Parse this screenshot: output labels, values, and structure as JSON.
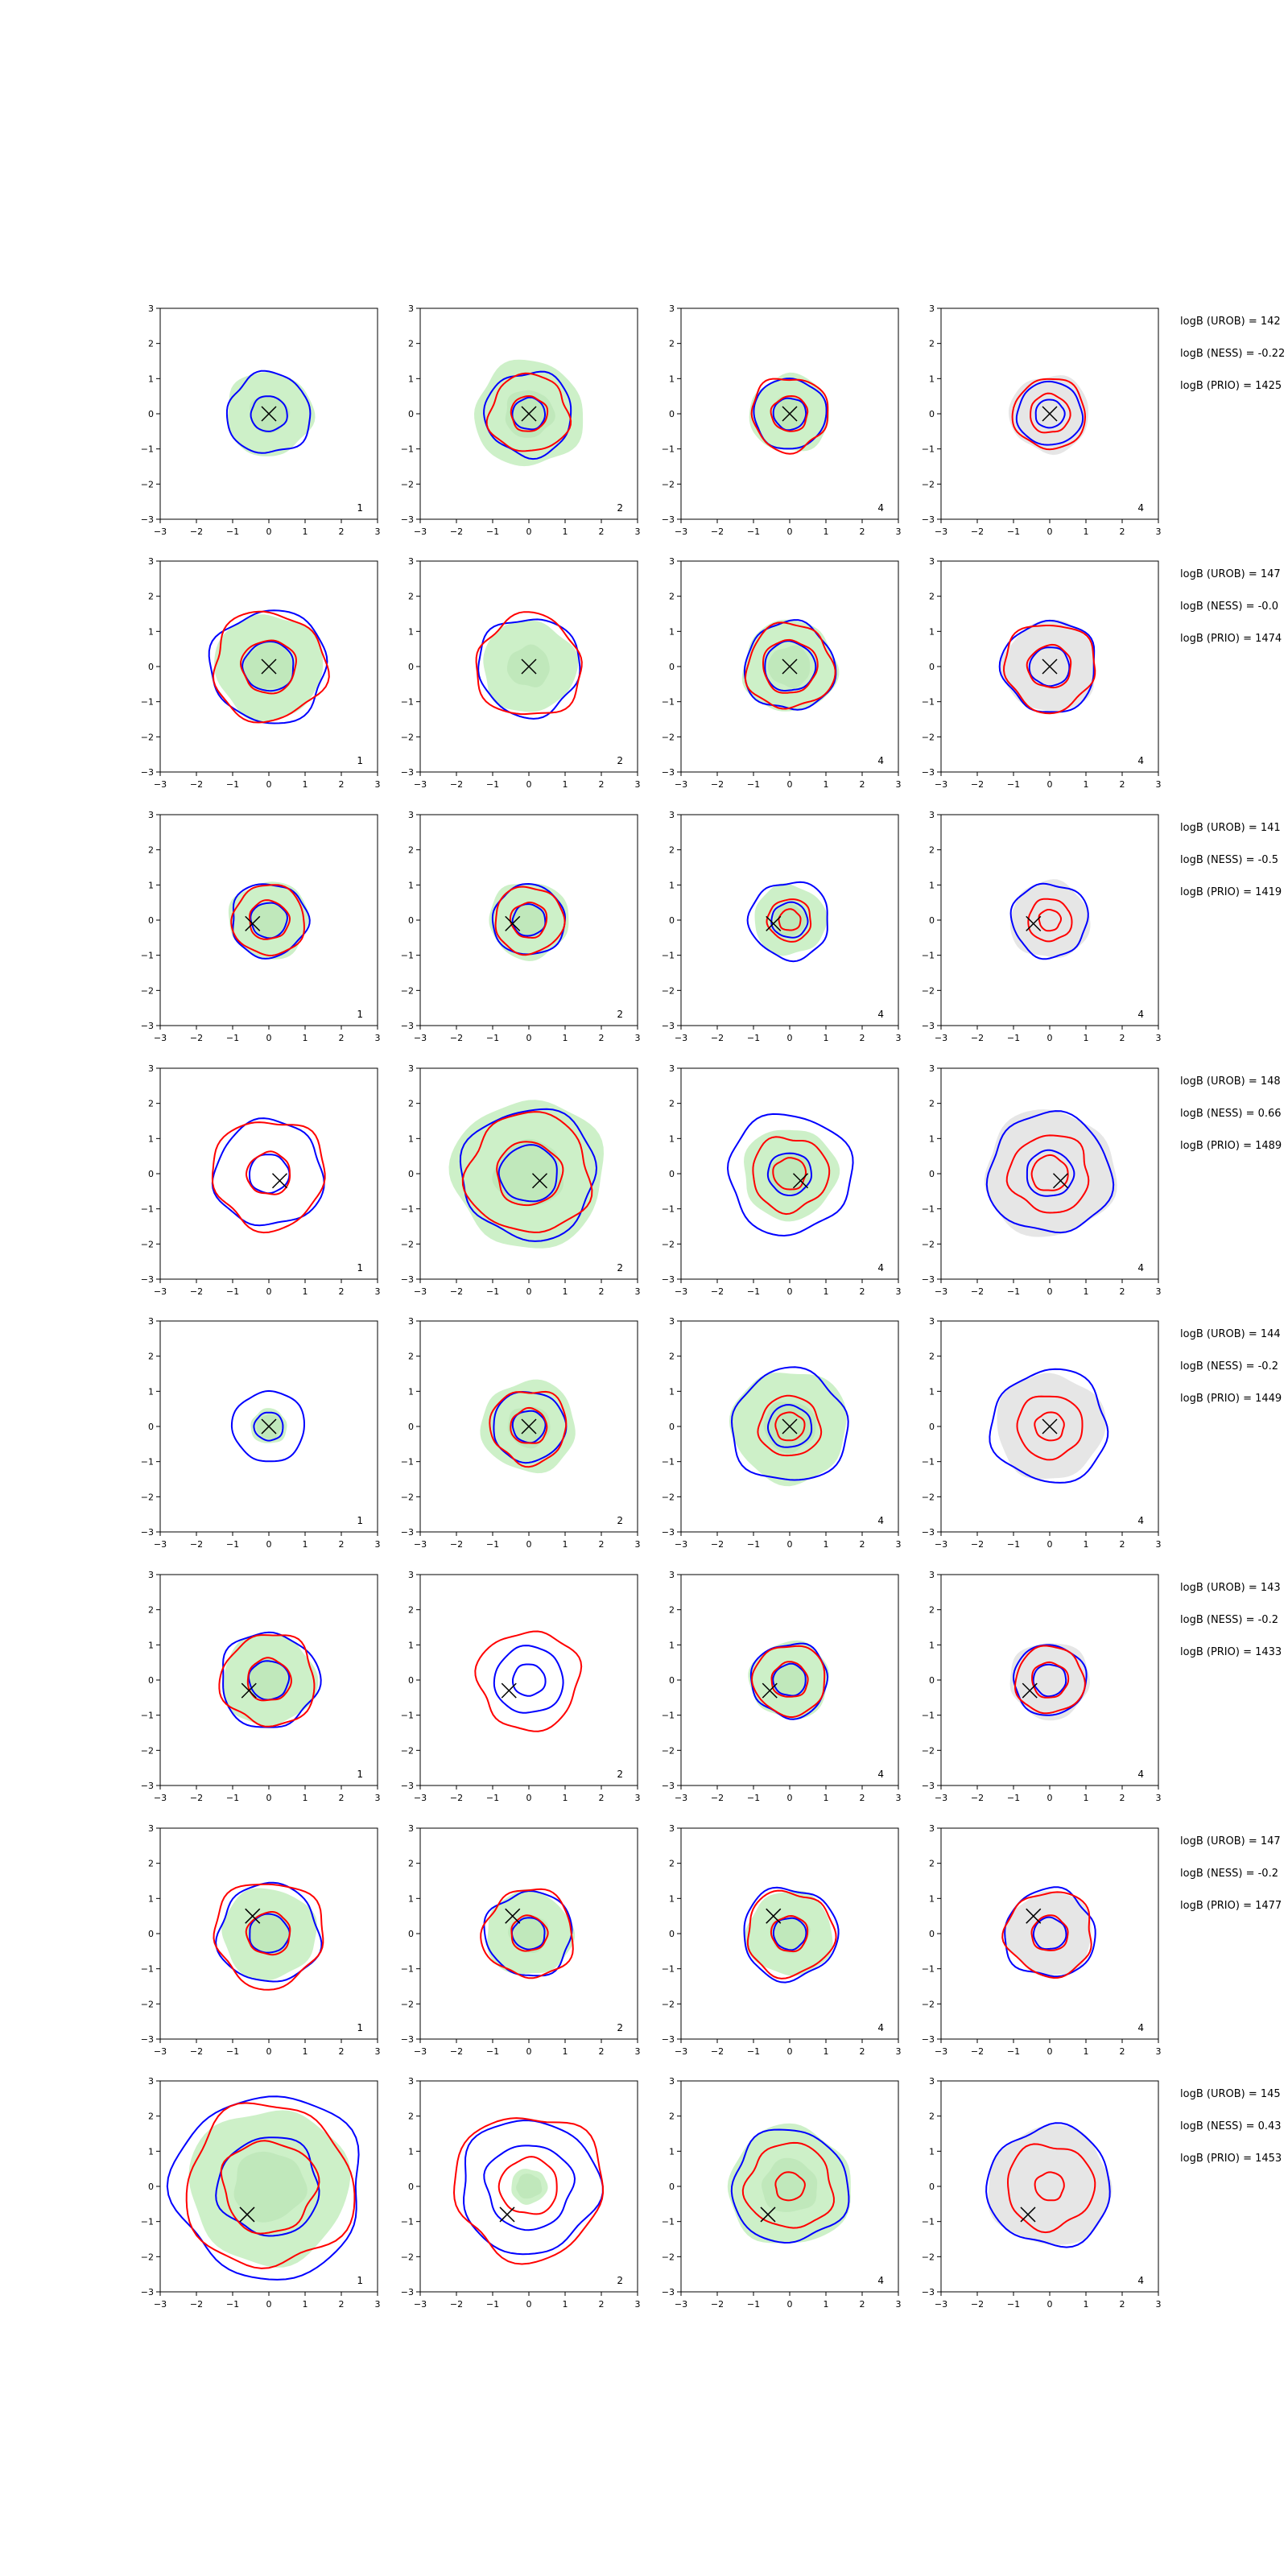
{
  "chart_data": {
    "type": "contour-grid",
    "rows": 8,
    "cols": 4,
    "xlim": [
      -3,
      3
    ],
    "ylim": [
      -3,
      3
    ],
    "xticks": [
      -3,
      -2,
      -1,
      0,
      1,
      2,
      3
    ],
    "yticks": [
      -3,
      -2,
      -1,
      0,
      1,
      2,
      3
    ],
    "column_labels": [
      "1",
      "2",
      "4",
      "4"
    ],
    "colors": {
      "blue_contour": "#0000ff",
      "red_contour": "#ff0000",
      "green_fill": "#cdf0c8",
      "green_fill_dark": "#b8e3b3",
      "gray_fill": "#e6e6e6",
      "marker": "#000000"
    },
    "row_annotations": [
      {
        "urob": "logB (UROB) = 142",
        "ness": "logB (NESS) = -0.22",
        "prio": "logB (PRIO) = 1425"
      },
      {
        "urob": "logB (UROB) = 147",
        "ness": "logB (NESS) = -0.0",
        "prio": "logB (PRIO) = 1474"
      },
      {
        "urob": "logB (UROB) = 141",
        "ness": "logB (NESS) = -0.5",
        "prio": "logB (PRIO) = 1419"
      },
      {
        "urob": "logB (UROB) = 148",
        "ness": "logB (NESS) = 0.66",
        "prio": "logB (PRIO) = 1489"
      },
      {
        "urob": "logB (UROB) = 144",
        "ness": "logB (NESS) = -0.2",
        "prio": "logB (PRIO) = 1449"
      },
      {
        "urob": "logB (UROB) = 143",
        "ness": "logB (NESS) = -0.2",
        "prio": "logB (PRIO) = 1433"
      },
      {
        "urob": "logB (UROB) = 147",
        "ness": "logB (NESS) = -0.2",
        "prio": "logB (PRIO) = 1477"
      },
      {
        "urob": "logB (UROB) = 145",
        "ness": "logB (NESS) = 0.43",
        "prio": "logB (PRIO) = 1453"
      }
    ],
    "panels": [
      [
        {
          "marker": [
            0,
            0
          ],
          "fill": {
            "type": "green",
            "r": 1.2
          },
          "blue": [
            0.5,
            1.15
          ],
          "red": []
        },
        {
          "marker": [
            0,
            0
          ],
          "fill": {
            "type": "green",
            "r": 1.5
          },
          "blue": [
            0.45,
            1.2
          ],
          "red": [
            0.5,
            1.1
          ]
        },
        {
          "marker": [
            0,
            0
          ],
          "fill": {
            "type": "green",
            "r": 1.1
          },
          "blue": [
            0.45,
            1.0
          ],
          "red": [
            0.5,
            1.05
          ]
        },
        {
          "marker": [
            0,
            0
          ],
          "fill": {
            "type": "gray",
            "r": 1.1
          },
          "blue": [
            0.4,
            0.9
          ],
          "red": [
            0.55,
            1.0
          ]
        }
      ],
      [
        {
          "marker": [
            0,
            0
          ],
          "fill": {
            "type": "green",
            "r": 1.5
          },
          "blue": [
            0.7,
            1.6
          ],
          "red": [
            0.75,
            1.55
          ]
        },
        {
          "marker": [
            0,
            0
          ],
          "fill": {
            "type": "green",
            "r": 1.3
          },
          "blue": [
            1.4
          ],
          "red": [
            1.45
          ]
        },
        {
          "marker": [
            0,
            0
          ],
          "fill": {
            "type": "green",
            "r": 1.3
          },
          "blue": [
            0.7,
            1.25
          ],
          "red": [
            0.75,
            1.2
          ]
        },
        {
          "marker": [
            0,
            0
          ],
          "fill": {
            "type": "gray",
            "r": 1.3
          },
          "blue": [
            0.55,
            1.3
          ],
          "red": [
            0.6,
            1.25
          ]
        }
      ],
      [
        {
          "marker": [
            -0.45,
            -0.1
          ],
          "fill": {
            "type": "green",
            "r": 1.1
          },
          "blue": [
            0.5,
            1.05
          ],
          "red": [
            0.55,
            1.0
          ]
        },
        {
          "marker": [
            -0.45,
            -0.1
          ],
          "fill": {
            "type": "green",
            "r": 1.1
          },
          "blue": [
            0.45,
            1.0
          ],
          "red": [
            0.5,
            0.95
          ]
        },
        {
          "marker": [
            -0.45,
            -0.1
          ],
          "fill": {
            "type": "green",
            "r": 1.0
          },
          "blue": [
            0.5,
            1.1
          ],
          "red": [
            0.3,
            0.6
          ]
        },
        {
          "marker": [
            -0.45,
            -0.1
          ],
          "fill": {
            "type": "gray",
            "r": 1.1
          },
          "blue": [
            1.05
          ],
          "red": [
            0.3,
            0.6
          ]
        }
      ],
      [
        {
          "marker": [
            0.3,
            -0.2
          ],
          "fill": {
            "type": "none",
            "r": 0
          },
          "blue": [
            0.55,
            1.5
          ],
          "red": [
            0.6,
            1.55
          ]
        },
        {
          "marker": [
            0.3,
            -0.2
          ],
          "fill": {
            "type": "green",
            "r": 2.1
          },
          "blue": [
            0.8,
            1.85
          ],
          "red": [
            0.9,
            1.7
          ]
        },
        {
          "marker": [
            0.3,
            -0.2
          ],
          "fill": {
            "type": "green",
            "r": 1.3
          },
          "blue": [
            0.6,
            1.7
          ],
          "red": [
            0.45,
            1.05
          ]
        },
        {
          "marker": [
            0.3,
            -0.2
          ],
          "fill": {
            "type": "gray",
            "r": 1.8
          },
          "blue": [
            0.65,
            1.7
          ],
          "red": [
            0.5,
            1.1
          ]
        }
      ],
      [
        {
          "marker": [
            0,
            0
          ],
          "fill": {
            "type": "green",
            "r": 0.5
          },
          "blue": [
            0.4,
            1.0
          ],
          "red": []
        },
        {
          "marker": [
            0,
            0
          ],
          "fill": {
            "type": "green",
            "r": 1.3
          },
          "blue": [
            0.45,
            1.0
          ],
          "red": [
            0.5,
            1.05
          ]
        },
        {
          "marker": [
            0,
            0
          ],
          "fill": {
            "type": "green",
            "r": 1.6
          },
          "blue": [
            0.6,
            1.6
          ],
          "red": [
            0.4,
            0.85
          ]
        },
        {
          "marker": [
            0,
            0
          ],
          "fill": {
            "type": "gray",
            "r": 1.5
          },
          "blue": [
            1.6
          ],
          "red": [
            0.4,
            0.9
          ]
        }
      ],
      [
        {
          "marker": [
            -0.55,
            -0.3
          ],
          "fill": {
            "type": "green",
            "r": 1.3
          },
          "blue": [
            0.55,
            1.35
          ],
          "red": [
            0.6,
            1.3
          ]
        },
        {
          "marker": [
            -0.55,
            -0.3
          ],
          "fill": {
            "type": "none",
            "r": 0
          },
          "blue": [
            0.45,
            0.95
          ],
          "red": [
            1.4
          ]
        },
        {
          "marker": [
            -0.55,
            -0.3
          ],
          "fill": {
            "type": "green",
            "r": 1.1
          },
          "blue": [
            0.45,
            1.05
          ],
          "red": [
            0.5,
            1.0
          ]
        },
        {
          "marker": [
            -0.55,
            -0.3
          ],
          "fill": {
            "type": "gray",
            "r": 1.1
          },
          "blue": [
            0.45,
            1.0
          ],
          "red": [
            0.5,
            0.95
          ]
        }
      ],
      [
        {
          "marker": [
            -0.45,
            0.5
          ],
          "fill": {
            "type": "green",
            "r": 1.3
          },
          "blue": [
            0.55,
            1.4
          ],
          "red": [
            0.6,
            1.5
          ]
        },
        {
          "marker": [
            -0.45,
            0.5
          ],
          "fill": {
            "type": "green",
            "r": 1.2
          },
          "blue": [
            0.45,
            1.2
          ],
          "red": [
            0.5,
            1.25
          ]
        },
        {
          "marker": [
            -0.45,
            0.5
          ],
          "fill": {
            "type": "green",
            "r": 1.2
          },
          "blue": [
            0.45,
            1.3
          ],
          "red": [
            0.5,
            1.2
          ]
        },
        {
          "marker": [
            -0.45,
            0.5
          ],
          "fill": {
            "type": "gray",
            "r": 1.2
          },
          "blue": [
            0.45,
            1.25
          ],
          "red": [
            0.5,
            1.2
          ]
        }
      ],
      [
        {
          "marker": [
            -0.6,
            -0.8
          ],
          "fill": {
            "type": "green-large",
            "r": 2.2
          },
          "blue": [
            1.4,
            2.6
          ],
          "red": [
            1.3,
            2.3
          ]
        },
        {
          "marker": [
            -0.6,
            -0.8
          ],
          "fill": {
            "type": "green",
            "r": 0.5
          },
          "blue": [
            1.2,
            1.9
          ],
          "red": [
            0.8,
            2.05
          ]
        },
        {
          "marker": [
            -0.6,
            -0.8
          ],
          "fill": {
            "type": "green",
            "r": 1.7
          },
          "blue": [
            1.6
          ],
          "red": [
            0.4,
            1.2
          ]
        },
        {
          "marker": [
            -0.6,
            -0.8
          ],
          "fill": {
            "type": "gray",
            "r": 1.7
          },
          "blue": [
            1.7
          ],
          "red": [
            0.4,
            1.2
          ]
        }
      ]
    ]
  }
}
